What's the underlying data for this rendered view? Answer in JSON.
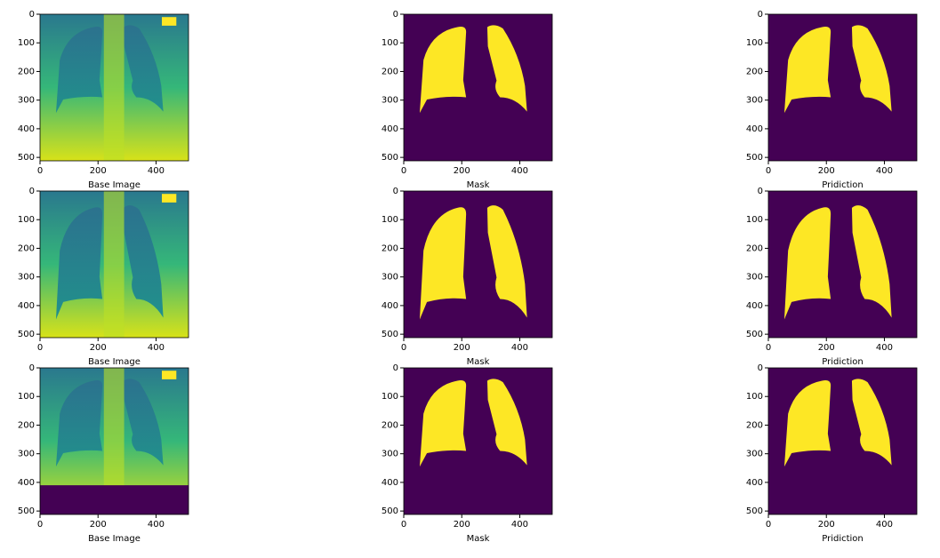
{
  "chart_data": [
    {
      "type": "image",
      "xlabel": "Base Image",
      "xlim": [
        0,
        512
      ],
      "ylim": [
        512,
        0
      ],
      "xticks": [
        0,
        200,
        400
      ],
      "yticks": [
        0,
        100,
        200,
        300,
        400,
        500
      ]
    },
    {
      "type": "image",
      "xlabel": "Mask",
      "xlim": [
        0,
        512
      ],
      "ylim": [
        512,
        0
      ],
      "xticks": [
        0,
        200,
        400
      ],
      "yticks": [
        0,
        100,
        200,
        300,
        400,
        500
      ]
    },
    {
      "type": "image",
      "xlabel": "Pridiction",
      "xlim": [
        0,
        512
      ],
      "ylim": [
        512,
        0
      ],
      "xticks": [
        0,
        200,
        400
      ],
      "yticks": [
        0,
        100,
        200,
        300,
        400,
        500
      ]
    },
    {
      "type": "image",
      "xlabel": "Base Image",
      "xlim": [
        0,
        512
      ],
      "ylim": [
        512,
        0
      ],
      "xticks": [
        0,
        200,
        400
      ],
      "yticks": [
        0,
        100,
        200,
        300,
        400,
        500
      ]
    },
    {
      "type": "image",
      "xlabel": "Mask",
      "xlim": [
        0,
        512
      ],
      "ylim": [
        512,
        0
      ],
      "xticks": [
        0,
        200,
        400
      ],
      "yticks": [
        0,
        100,
        200,
        300,
        400,
        500
      ]
    },
    {
      "type": "image",
      "xlabel": "Pridiction",
      "xlim": [
        0,
        512
      ],
      "ylim": [
        512,
        0
      ],
      "xticks": [
        0,
        200,
        400
      ],
      "yticks": [
        0,
        100,
        200,
        300,
        400,
        500
      ]
    },
    {
      "type": "image",
      "xlabel": "Base Image",
      "xlim": [
        0,
        512
      ],
      "ylim": [
        512,
        0
      ],
      "xticks": [
        0,
        200,
        400
      ],
      "yticks": [
        0,
        100,
        200,
        300,
        400,
        500
      ]
    },
    {
      "type": "image",
      "xlabel": "Mask",
      "xlim": [
        0,
        512
      ],
      "ylim": [
        512,
        0
      ],
      "xticks": [
        0,
        200,
        400
      ],
      "yticks": [
        0,
        100,
        200,
        300,
        400,
        500
      ]
    },
    {
      "type": "image",
      "xlabel": "Pridiction",
      "xlim": [
        0,
        512
      ],
      "ylim": [
        512,
        0
      ],
      "xticks": [
        0,
        200,
        400
      ],
      "yticks": [
        0,
        100,
        200,
        300,
        400,
        500
      ]
    }
  ]
}
